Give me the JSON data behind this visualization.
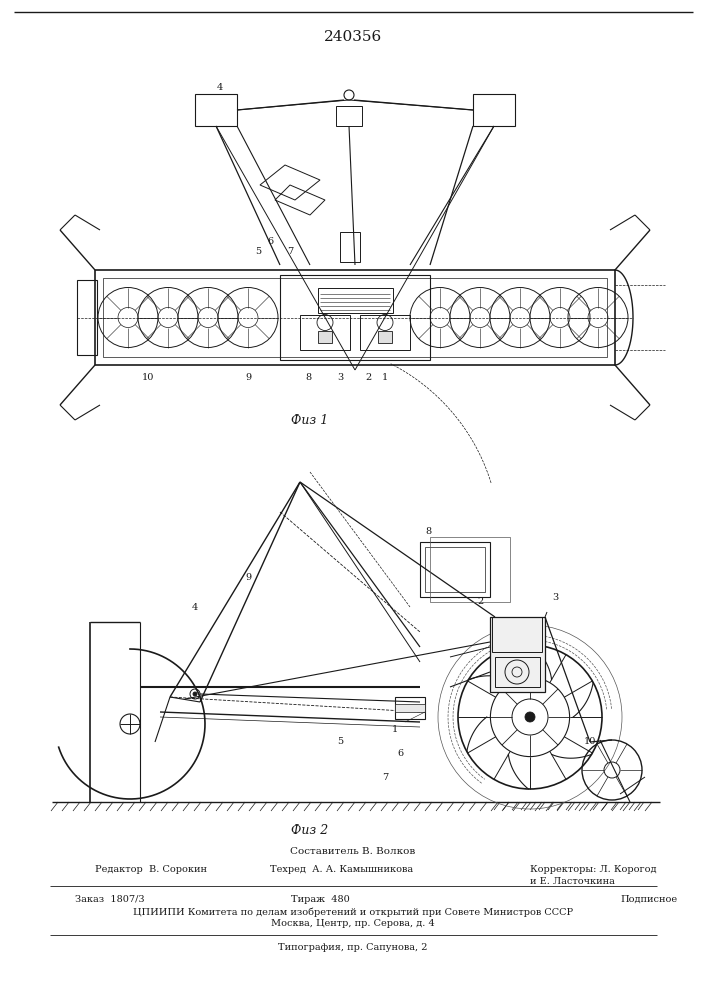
{
  "patent_number": "240356",
  "fig1_label": "Физ 1",
  "fig2_label": "Физ 2",
  "footer": {
    "composer": "Составитель В. Волков",
    "editor": "Редактор  В. Сорокин",
    "techred": "Техред  А. А. Камышникова",
    "correctors": "Корректоры: Л. Корогод",
    "correctors2": "и Е. Ласточкина",
    "order": "Заказ  1807/3",
    "tirazh": "Тираж  480",
    "podpisnoe": "Подписное",
    "tspinpi": "ЦПИИПИ Комитета по делам изобретений и открытий при Совете Министров СССР",
    "moscow": "Москва, Центр, пр. Серова, д. 4",
    "tipografiya": "Типография, пр. Сапунова, 2"
  }
}
